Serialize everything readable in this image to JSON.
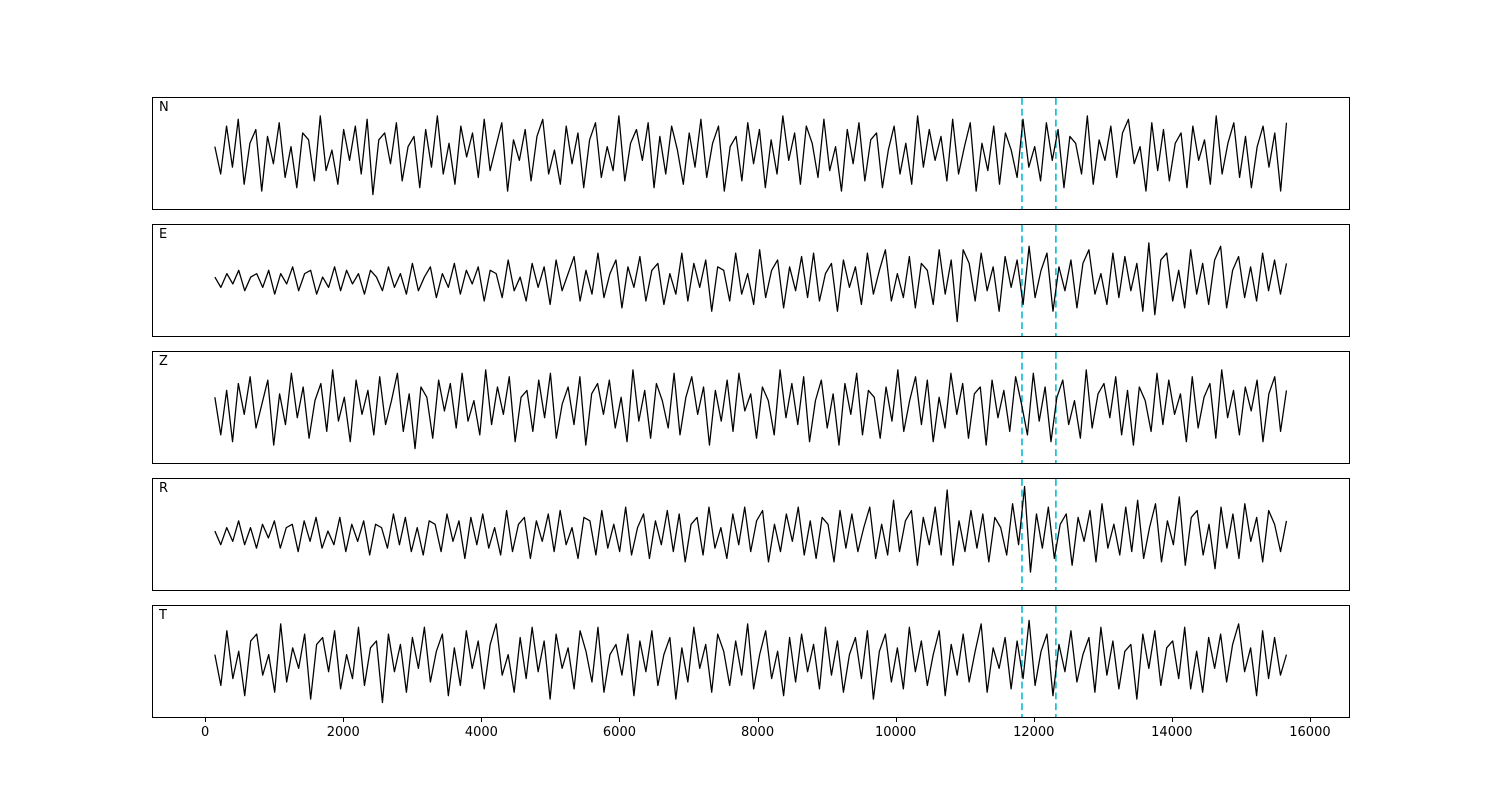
{
  "figure": {
    "background": "#ffffff",
    "trace_color": "#000000"
  },
  "chart_data": {
    "type": "line",
    "title": "",
    "xlabel": "",
    "ylabel": "",
    "legend": "none",
    "grid": false,
    "xlim": [
      -770,
      16580
    ],
    "x_ticks": [
      0,
      2000,
      4000,
      6000,
      8000,
      10000,
      12000,
      14000,
      16000
    ],
    "x_start": 0,
    "x_end": 15800,
    "line_color": "#000000",
    "vlines": {
      "x": [
        11900,
        12400
      ],
      "color": "#00bcd4",
      "style": "dashed"
    },
    "panels": [
      {
        "label": "N",
        "ylim": [
          -1.45,
          1.45
        ],
        "values": [
          0.2,
          -0.6,
          0.8,
          -0.4,
          1.0,
          -0.9,
          0.3,
          0.7,
          -1.1,
          0.5,
          -0.3,
          0.9,
          -0.7,
          0.2,
          -1.0,
          0.6,
          0.4,
          -0.8,
          1.1,
          -0.5,
          0.1,
          -0.9,
          0.7,
          -0.2,
          0.8,
          -0.6,
          1.0,
          -1.2,
          0.4,
          0.6,
          -0.3,
          0.9,
          -0.8,
          0.2,
          0.5,
          -1.0,
          0.7,
          -0.4,
          1.1,
          -0.6,
          0.3,
          -0.9,
          0.8,
          -0.1,
          0.6,
          -0.7,
          1.0,
          -0.5,
          0.2,
          0.9,
          -1.1,
          0.4,
          -0.2,
          0.7,
          -0.8,
          0.5,
          1.0,
          -0.6,
          0.1,
          -0.9,
          0.8,
          -0.3,
          0.6,
          -1.0,
          0.4,
          0.9,
          -0.7,
          0.2,
          -0.5,
          1.1,
          -0.8,
          0.3,
          0.7,
          -0.2,
          0.9,
          -1.0,
          0.5,
          -0.6,
          0.8,
          0.1,
          -0.9,
          0.6,
          -0.4,
          1.0,
          -0.7,
          0.3,
          0.8,
          -1.1,
          0.2,
          0.5,
          -0.8,
          0.9,
          -0.3,
          0.7,
          -1.0,
          0.4,
          -0.6,
          1.1,
          -0.2,
          0.6,
          -0.9,
          0.8,
          0.3,
          -0.7,
          1.0,
          -0.5,
          0.2,
          -1.1,
          0.7,
          -0.3,
          0.9,
          -0.8,
          0.4,
          0.6,
          -1.0,
          0.1,
          0.8,
          -0.6,
          0.3,
          -0.9,
          1.1,
          -0.4,
          0.7,
          -0.2,
          0.5,
          -0.8,
          1.0,
          -0.6,
          0.2,
          0.9,
          -1.1,
          0.3,
          -0.5,
          0.8,
          -0.9,
          0.6,
          0.1,
          -0.7,
          1.0,
          -0.4,
          0.2,
          -0.8,
          0.9,
          -0.2,
          0.7,
          -1.0,
          0.5,
          0.3,
          -0.6,
          1.1,
          -0.9,
          0.4,
          -0.2,
          0.8,
          -0.7,
          0.6,
          1.0,
          -0.3,
          0.2,
          -1.1,
          0.9,
          -0.5,
          0.7,
          -0.8,
          0.3,
          0.6,
          -1.0,
          0.8,
          -0.2,
          0.4,
          -0.9,
          1.1,
          -0.6,
          0.3,
          0.9,
          -0.7,
          0.5,
          -1.0,
          0.2,
          0.8,
          -0.4,
          0.6,
          -1.1,
          0.9
        ]
      },
      {
        "label": "E",
        "ylim": [
          -1.45,
          1.45
        ],
        "values": [
          0.1,
          -0.2,
          0.2,
          -0.1,
          0.3,
          -0.3,
          0.1,
          0.2,
          -0.2,
          0.3,
          -0.4,
          0.2,
          -0.1,
          0.4,
          -0.3,
          0.2,
          0.3,
          -0.4,
          0.1,
          -0.2,
          0.4,
          -0.3,
          0.3,
          -0.1,
          0.2,
          -0.4,
          0.3,
          0.1,
          -0.3,
          0.4,
          -0.2,
          0.2,
          -0.4,
          0.5,
          -0.3,
          0.1,
          0.4,
          -0.5,
          0.2,
          -0.2,
          0.5,
          -0.4,
          0.3,
          -0.1,
          0.4,
          -0.6,
          0.3,
          0.2,
          -0.5,
          0.6,
          -0.3,
          0.1,
          -0.6,
          0.5,
          -0.2,
          0.4,
          -0.7,
          0.6,
          -0.3,
          0.2,
          0.7,
          -0.6,
          0.3,
          -0.4,
          0.8,
          -0.5,
          0.2,
          0.6,
          -0.8,
          0.4,
          -0.2,
          0.7,
          -0.6,
          0.3,
          0.5,
          -0.7,
          0.2,
          -0.4,
          0.8,
          -0.6,
          0.5,
          -0.2,
          0.6,
          -0.9,
          0.4,
          0.3,
          -0.6,
          0.8,
          -0.4,
          0.2,
          -0.7,
          0.9,
          -0.5,
          0.3,
          0.6,
          -0.8,
          0.4,
          -0.3,
          0.7,
          -0.5,
          0.8,
          -0.6,
          0.2,
          0.5,
          -0.9,
          0.6,
          -0.2,
          0.4,
          -0.7,
          0.8,
          -0.4,
          0.3,
          0.9,
          -0.6,
          0.2,
          -0.5,
          0.7,
          -0.8,
          0.5,
          0.3,
          -0.7,
          0.9,
          -0.4,
          0.6,
          -1.2,
          0.9,
          0.5,
          -0.6,
          0.8,
          -0.3,
          0.4,
          -0.9,
          0.7,
          -0.2,
          0.6,
          -0.7,
          1.0,
          -0.5,
          0.3,
          0.8,
          -0.9,
          0.4,
          -0.3,
          0.6,
          -0.8,
          0.5,
          0.9,
          -0.4,
          0.2,
          -0.7,
          0.8,
          -0.5,
          0.7,
          -0.3,
          0.5,
          -0.9,
          1.1,
          -1.0,
          0.6,
          0.8,
          -0.6,
          0.3,
          -0.8,
          0.9,
          -0.4,
          0.5,
          -0.7,
          0.6,
          1.0,
          -0.8,
          0.3,
          0.7,
          -0.5,
          0.4,
          -0.6,
          0.8,
          -0.3,
          0.6,
          -0.4,
          0.5
        ]
      },
      {
        "label": "Z",
        "ylim": [
          -1.45,
          1.45
        ],
        "values": [
          0.3,
          -0.8,
          0.5,
          -1.0,
          0.7,
          -0.2,
          0.9,
          -0.6,
          0.1,
          0.8,
          -1.1,
          0.4,
          -0.5,
          1.0,
          -0.3,
          0.6,
          -0.9,
          0.2,
          0.7,
          -0.7,
          1.1,
          -0.4,
          0.3,
          -1.0,
          0.8,
          -0.2,
          0.5,
          -0.8,
          0.9,
          -0.5,
          0.2,
          1.0,
          -0.7,
          0.4,
          -1.2,
          0.6,
          0.3,
          -0.9,
          0.8,
          -0.1,
          0.7,
          -0.6,
          1.0,
          -0.4,
          0.2,
          -0.8,
          1.1,
          -0.5,
          0.6,
          -0.2,
          0.9,
          -1.0,
          0.3,
          0.5,
          -0.7,
          0.8,
          -0.3,
          1.0,
          -0.9,
          0.1,
          0.6,
          -0.5,
          0.9,
          -1.1,
          0.4,
          0.7,
          -0.2,
          0.8,
          -0.6,
          0.3,
          -1.0,
          1.1,
          -0.4,
          0.5,
          -0.9,
          0.7,
          0.2,
          -0.6,
          1.0,
          -0.8,
          0.3,
          0.9,
          -0.2,
          0.6,
          -1.1,
          0.5,
          -0.4,
          0.8,
          -0.7,
          1.0,
          -0.1,
          0.4,
          -0.9,
          0.6,
          0.2,
          -0.8,
          1.1,
          -0.3,
          0.7,
          -0.5,
          0.9,
          -1.0,
          0.2,
          0.8,
          -0.6,
          0.4,
          -1.1,
          0.7,
          -0.2,
          1.0,
          -0.8,
          0.5,
          0.3,
          -0.9,
          0.6,
          -0.4,
          1.1,
          -0.7,
          0.2,
          0.9,
          -0.5,
          0.8,
          -1.0,
          0.3,
          -0.6,
          1.0,
          -0.2,
          0.7,
          -0.9,
          0.4,
          0.6,
          -1.1,
          0.8,
          -0.3,
          0.5,
          -0.7,
          0.9,
          0.1,
          -0.8,
          1.0,
          -0.4,
          0.6,
          -1.0,
          0.3,
          0.8,
          -0.5,
          0.2,
          -0.9,
          1.1,
          -0.6,
          0.4,
          0.7,
          -0.3,
          0.9,
          -0.8,
          0.5,
          -1.1,
          0.6,
          0.2,
          -0.7,
          1.0,
          -0.5,
          0.8,
          -0.2,
          0.4,
          -1.0,
          0.9,
          -0.6,
          0.3,
          0.7,
          -0.9,
          1.1,
          -0.3,
          0.5,
          -0.8,
          0.6,
          -0.1,
          0.8,
          -1.0,
          0.4,
          0.9,
          -0.7,
          0.5
        ]
      },
      {
        "label": "R",
        "ylim": [
          -1.45,
          1.45
        ],
        "values": [
          0.1,
          -0.3,
          0.2,
          -0.2,
          0.4,
          -0.3,
          0.2,
          -0.4,
          0.3,
          -0.1,
          0.4,
          -0.4,
          0.2,
          0.3,
          -0.5,
          0.4,
          -0.2,
          0.5,
          -0.4,
          0.1,
          -0.3,
          0.5,
          -0.5,
          0.3,
          -0.2,
          0.4,
          -0.6,
          0.3,
          0.2,
          -0.4,
          0.6,
          -0.3,
          0.5,
          -0.5,
          0.2,
          -0.6,
          0.4,
          0.3,
          -0.5,
          0.6,
          -0.2,
          0.4,
          -0.7,
          0.5,
          -0.3,
          0.6,
          -0.4,
          0.2,
          -0.6,
          0.7,
          -0.5,
          0.3,
          0.5,
          -0.7,
          0.4,
          -0.2,
          0.6,
          -0.5,
          0.7,
          -0.3,
          0.2,
          -0.7,
          0.5,
          0.4,
          -0.6,
          0.7,
          -0.4,
          0.3,
          -0.5,
          0.8,
          -0.6,
          0.2,
          0.6,
          -0.7,
          0.4,
          -0.3,
          0.7,
          -0.5,
          0.6,
          -0.8,
          0.3,
          0.5,
          -0.6,
          0.8,
          -0.4,
          0.2,
          -0.7,
          0.6,
          -0.3,
          0.8,
          -0.5,
          0.4,
          0.7,
          -0.8,
          0.3,
          -0.5,
          0.6,
          -0.2,
          0.8,
          -0.6,
          0.4,
          -0.7,
          0.5,
          0.3,
          -0.8,
          0.7,
          -0.4,
          0.6,
          -0.5,
          0.2,
          0.8,
          -0.7,
          0.3,
          -0.6,
          1.0,
          -0.5,
          0.4,
          0.7,
          -0.9,
          0.5,
          -0.3,
          0.8,
          -0.6,
          1.3,
          -0.9,
          0.4,
          -0.5,
          0.7,
          -0.4,
          0.6,
          -0.8,
          0.5,
          0.2,
          -0.6,
          0.9,
          -0.3,
          1.4,
          -1.1,
          0.6,
          -0.4,
          0.8,
          -0.7,
          0.3,
          0.6,
          -0.9,
          0.5,
          -0.2,
          0.7,
          -0.8,
          0.9,
          -0.4,
          0.3,
          -0.6,
          0.8,
          -0.5,
          1.0,
          -0.7,
          0.2,
          0.9,
          -0.8,
          0.4,
          -0.3,
          1.1,
          -0.9,
          0.5,
          0.7,
          -0.6,
          0.3,
          -1.0,
          0.8,
          -0.4,
          0.6,
          -0.7,
          0.9,
          -0.2,
          0.5,
          -0.8,
          0.7,
          0.3,
          -0.5,
          0.4
        ]
      },
      {
        "label": "T",
        "ylim": [
          -1.45,
          1.45
        ],
        "values": [
          0.2,
          -0.7,
          0.9,
          -0.5,
          0.3,
          -1.0,
          0.6,
          0.8,
          -0.4,
          0.2,
          -0.9,
          1.1,
          -0.6,
          0.4,
          -0.2,
          0.8,
          -1.1,
          0.5,
          0.7,
          -0.3,
          0.9,
          -0.8,
          0.2,
          -0.5,
          1.0,
          -0.7,
          0.4,
          0.6,
          -1.2,
          0.8,
          -0.3,
          0.5,
          -0.9,
          0.7,
          -0.2,
          1.0,
          -0.6,
          0.3,
          0.8,
          -1.0,
          0.4,
          -0.7,
          0.9,
          -0.2,
          0.6,
          -0.8,
          0.5,
          1.1,
          -0.4,
          0.2,
          -0.9,
          0.7,
          -0.5,
          1.0,
          -0.3,
          0.6,
          -1.1,
          0.8,
          -0.2,
          0.4,
          -0.8,
          0.9,
          0.3,
          -0.6,
          1.0,
          -0.9,
          0.2,
          0.5,
          -0.4,
          0.8,
          -1.0,
          0.6,
          -0.3,
          0.9,
          -0.7,
          0.2,
          0.7,
          -1.1,
          0.4,
          -0.6,
          1.0,
          -0.2,
          0.5,
          -0.9,
          0.8,
          0.3,
          -0.7,
          0.6,
          -0.4,
          1.1,
          -0.8,
          0.2,
          0.9,
          -0.5,
          0.3,
          -1.0,
          0.7,
          -0.6,
          0.8,
          -0.3,
          0.5,
          -0.8,
          1.0,
          -0.4,
          0.6,
          -0.9,
          0.2,
          0.7,
          -0.5,
          0.9,
          -1.1,
          0.3,
          0.8,
          -0.6,
          0.4,
          -0.8,
          1.0,
          -0.3,
          0.6,
          -0.7,
          0.2,
          0.9,
          -1.0,
          0.5,
          -0.4,
          0.8,
          -0.6,
          0.3,
          1.1,
          -0.9,
          0.4,
          -0.2,
          0.7,
          -0.8,
          0.6,
          -0.5,
          1.2,
          -0.7,
          0.3,
          0.8,
          -1.0,
          0.5,
          -0.3,
          0.9,
          -0.6,
          0.2,
          0.7,
          -0.9,
          1.0,
          -0.4,
          0.6,
          -0.8,
          0.3,
          0.5,
          -1.1,
          0.8,
          -0.2,
          0.9,
          -0.7,
          0.4,
          0.6,
          -0.5,
          1.0,
          -0.8,
          0.3,
          -0.9,
          0.7,
          -0.2,
          0.8,
          -0.6,
          0.5,
          1.1,
          -0.3,
          0.4,
          -1.0,
          0.9,
          -0.5,
          0.7,
          -0.4,
          0.2
        ]
      }
    ]
  }
}
